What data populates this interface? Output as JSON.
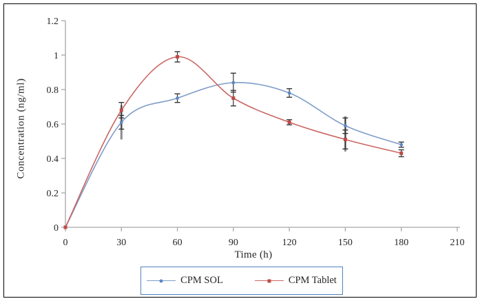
{
  "chart_data": {
    "type": "line",
    "title": "",
    "xlabel": "Time (h)",
    "ylabel": "Concentration (ng/ml)",
    "xlim": [
      0,
      210
    ],
    "ylim": [
      0,
      1.2
    ],
    "x_ticks": [
      0,
      30,
      60,
      90,
      120,
      150,
      180,
      210
    ],
    "y_ticks": [
      0,
      0.2,
      0.4,
      0.6,
      0.8,
      1,
      1.2
    ],
    "x": [
      0,
      30,
      60,
      90,
      120,
      150,
      180
    ],
    "series": [
      {
        "name": "CPM SOL",
        "marker": "dot",
        "line_color": "#7d9bc8",
        "marker_color": "#5e87c0",
        "values": [
          0,
          0.61,
          0.75,
          0.84,
          0.78,
          0.59,
          0.48
        ],
        "errors": [
          0,
          0.04,
          0.025,
          0.055,
          0.025,
          0.045,
          0.015
        ]
      },
      {
        "name": "CPM Tablet",
        "marker": "square",
        "line_color": "#ca6663",
        "marker_color": "#be4b48",
        "values": [
          0,
          0.68,
          0.99,
          0.75,
          0.61,
          0.51,
          0.43
        ],
        "errors": [
          0,
          0.045,
          0.03,
          0.045,
          0.015,
          0.055,
          0.02
        ]
      }
    ],
    "extra_gray_bars": [
      {
        "x": 30,
        "from": 0.51,
        "to": 0.71
      },
      {
        "x": 150,
        "from": 0.44,
        "to": 0.645
      }
    ],
    "legend_position": "bottom",
    "grid": "off",
    "smooth_lines": true
  },
  "colors": {
    "axis": "#a6a6a6",
    "tick_text": "#262626",
    "error_bar": "#333333",
    "gray_bar": "#8c8c8c",
    "legend_border": "#4f81bd",
    "figure_border": "#000000",
    "background": "#ffffff"
  }
}
